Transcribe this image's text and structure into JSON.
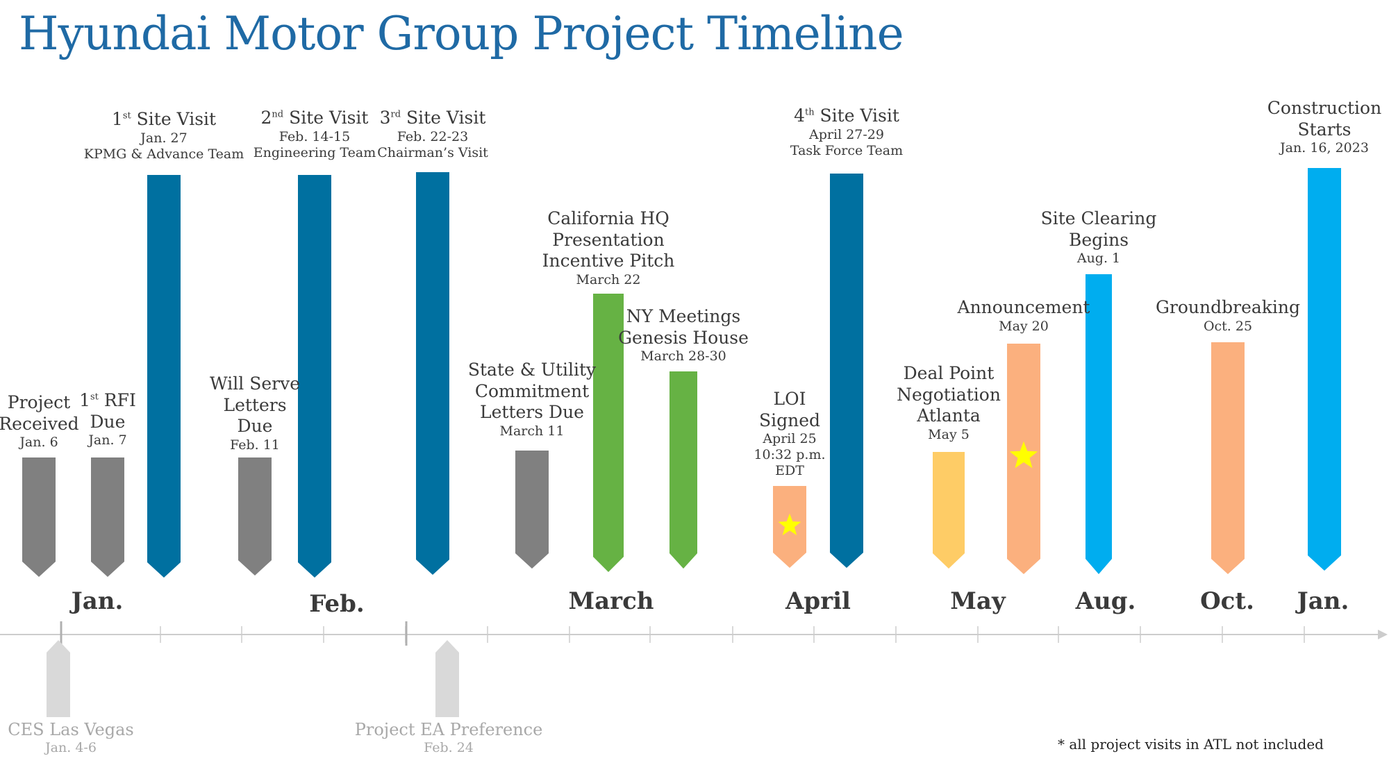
{
  "title": "Hyundai Motor Group Project Timeline",
  "months": [
    "Jan.",
    "Feb.",
    "March",
    "April",
    "May",
    "Aug.",
    "Oct.",
    "Jan."
  ],
  "colors": {
    "grey": "#808080",
    "blue": "#0070a0",
    "green": "#66b244",
    "peach": "#fbb07e",
    "yellow": "#fecc66",
    "cyan": "#00adef",
    "star": "#ffff00",
    "axis": "#cccccc",
    "preevent": "#d9d9d9"
  },
  "events": [
    {
      "name": "Project Received",
      "main": [
        "Project",
        "Received"
      ],
      "date": [
        "Jan. 6"
      ],
      "color": "grey"
    },
    {
      "name": "1st RFI Due",
      "main": [
        "1st RFI",
        "Due"
      ],
      "date": [
        "Jan. 7"
      ],
      "color": "grey"
    },
    {
      "name": "1st Site Visit",
      "main": [
        "1st Site Visit"
      ],
      "date": [
        "Jan. 27",
        "KPMG & Advance Team"
      ],
      "color": "blue"
    },
    {
      "name": "Will Serve Letters Due",
      "main": [
        "Will Serve",
        "Letters",
        "Due"
      ],
      "date": [
        "Feb. 11"
      ],
      "color": "grey"
    },
    {
      "name": "2nd Site Visit",
      "main": [
        "2nd Site Visit"
      ],
      "date": [
        "Feb. 14-15",
        "Engineering Team"
      ],
      "color": "blue"
    },
    {
      "name": "3rd Site Visit",
      "main": [
        "3rd Site Visit"
      ],
      "date": [
        "Feb. 22-23",
        "Chairman’s Visit"
      ],
      "color": "blue"
    },
    {
      "name": "State & Utility Commitment Letters Due",
      "main": [
        "State & Utility",
        "Commitment",
        "Letters Due"
      ],
      "date": [
        "March 11"
      ],
      "color": "grey"
    },
    {
      "name": "California HQ Presentation Incentive Pitch",
      "main": [
        "California HQ",
        "Presentation",
        "Incentive Pitch"
      ],
      "date": [
        "March 22"
      ],
      "color": "green"
    },
    {
      "name": "NY Meetings Genesis House",
      "main": [
        "NY Meetings",
        "Genesis House"
      ],
      "date": [
        "March 28-30"
      ],
      "color": "green"
    },
    {
      "name": "LOI Signed",
      "main": [
        "LOI",
        "Signed"
      ],
      "date": [
        "April 25",
        "10:32 p.m.",
        "EDT"
      ],
      "color": "peach",
      "star": true
    },
    {
      "name": "4th Site Visit",
      "main": [
        "4th Site Visit"
      ],
      "date": [
        "April 27-29",
        "Task Force Team"
      ],
      "color": "blue"
    },
    {
      "name": "Deal Point Negotiation Atlanta",
      "main": [
        "Deal Point",
        "Negotiation",
        "Atlanta"
      ],
      "date": [
        "May 5"
      ],
      "color": "yellow"
    },
    {
      "name": "Announcement",
      "main": [
        "Announcement"
      ],
      "date": [
        "May 20"
      ],
      "color": "peach",
      "star": true
    },
    {
      "name": "Site Clearing Begins",
      "main": [
        "Site Clearing",
        "Begins"
      ],
      "date": [
        "Aug. 1"
      ],
      "color": "cyan"
    },
    {
      "name": "Groundbreaking",
      "main": [
        "Groundbreaking"
      ],
      "date": [
        "Oct. 25"
      ],
      "color": "peach"
    },
    {
      "name": "Construction Starts",
      "main": [
        "Construction",
        "Starts"
      ],
      "date": [
        "Jan. 16, 2023"
      ],
      "color": "cyan"
    }
  ],
  "pre_events": [
    {
      "name": "CES Las Vegas",
      "date": "Jan. 4-6"
    },
    {
      "name": "Project EA Preference",
      "date": "Feb. 24"
    }
  ],
  "footnote": "* all project visits in ATL not included"
}
